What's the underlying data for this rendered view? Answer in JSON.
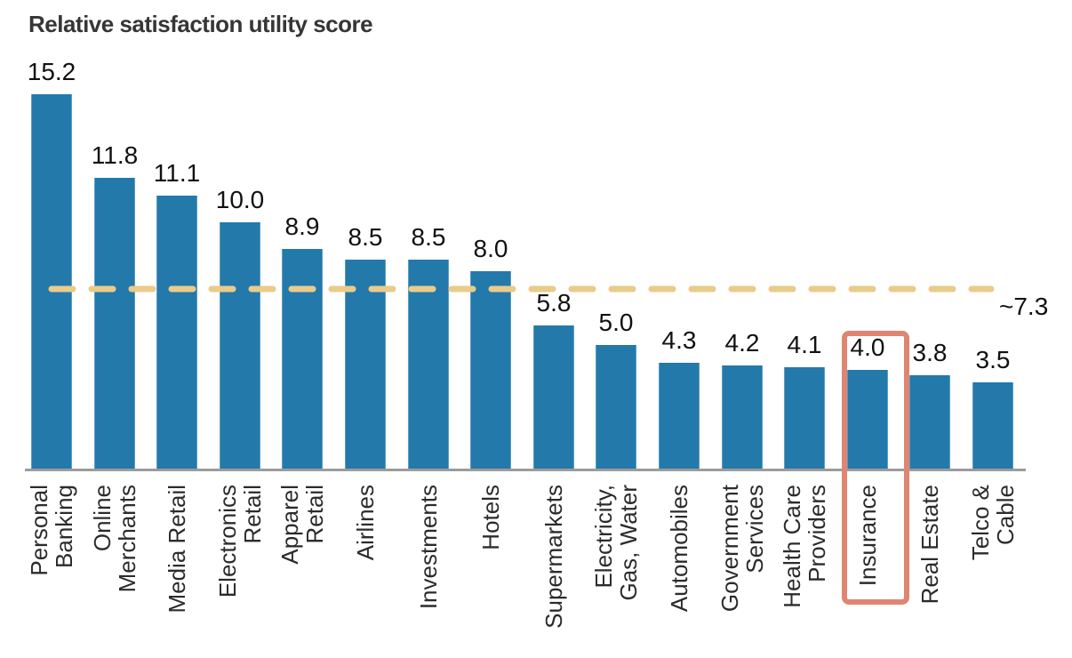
{
  "title": "Relative satisfaction utility score",
  "colors": {
    "bar": "#2479ab",
    "bar_edge": "#5b9cc2",
    "axis": "#9c9c9c",
    "reference_line": "#e9cb8a",
    "highlight_box": "#df8571",
    "title_text": "#363636",
    "value_text": "#111111",
    "category_text": "#2b2b2b"
  },
  "chart_data": {
    "type": "bar",
    "title": "Relative satisfaction utility score",
    "xlabel": "",
    "ylabel": "",
    "ylim": [
      0,
      16
    ],
    "grid": false,
    "legend": false,
    "value_labels_shown": true,
    "categories": [
      "Personal Banking",
      "Online Merchants",
      "Media Retail",
      "Electronics Retail",
      "Apparel Retail",
      "Airlines",
      "Investments",
      "Hotels",
      "Supermarkets",
      "Electricity, Gas, Water",
      "Automobiles",
      "Government Services",
      "Health Care Providers",
      "Insurance",
      "Real Estate",
      "Telco & Cable"
    ],
    "category_label_lines": [
      [
        "Personal",
        "Banking"
      ],
      [
        "Online",
        "Merchants"
      ],
      [
        "Media Retail"
      ],
      [
        "Electronics",
        "Retail"
      ],
      [
        "Apparel",
        "Retail"
      ],
      [
        "Airlines"
      ],
      [
        "Investments"
      ],
      [
        "Hotels"
      ],
      [
        "Supermarkets"
      ],
      [
        "Electricity,",
        "Gas, Water"
      ],
      [
        "Automobiles"
      ],
      [
        "Government",
        "Services"
      ],
      [
        "Health Care",
        "Providers"
      ],
      [
        "Insurance"
      ],
      [
        "Real Estate"
      ],
      [
        "Telco &",
        "Cable"
      ]
    ],
    "values": [
      15.2,
      11.8,
      11.1,
      10.0,
      8.9,
      8.5,
      8.5,
      8.0,
      5.8,
      5.0,
      4.3,
      4.2,
      4.1,
      4.0,
      3.8,
      3.5
    ],
    "reference_line": {
      "value": 7.3,
      "label": "~7.3",
      "style": "dashed"
    },
    "highlight": {
      "category": "Insurance",
      "shape": "rounded-rectangle-outline"
    }
  }
}
